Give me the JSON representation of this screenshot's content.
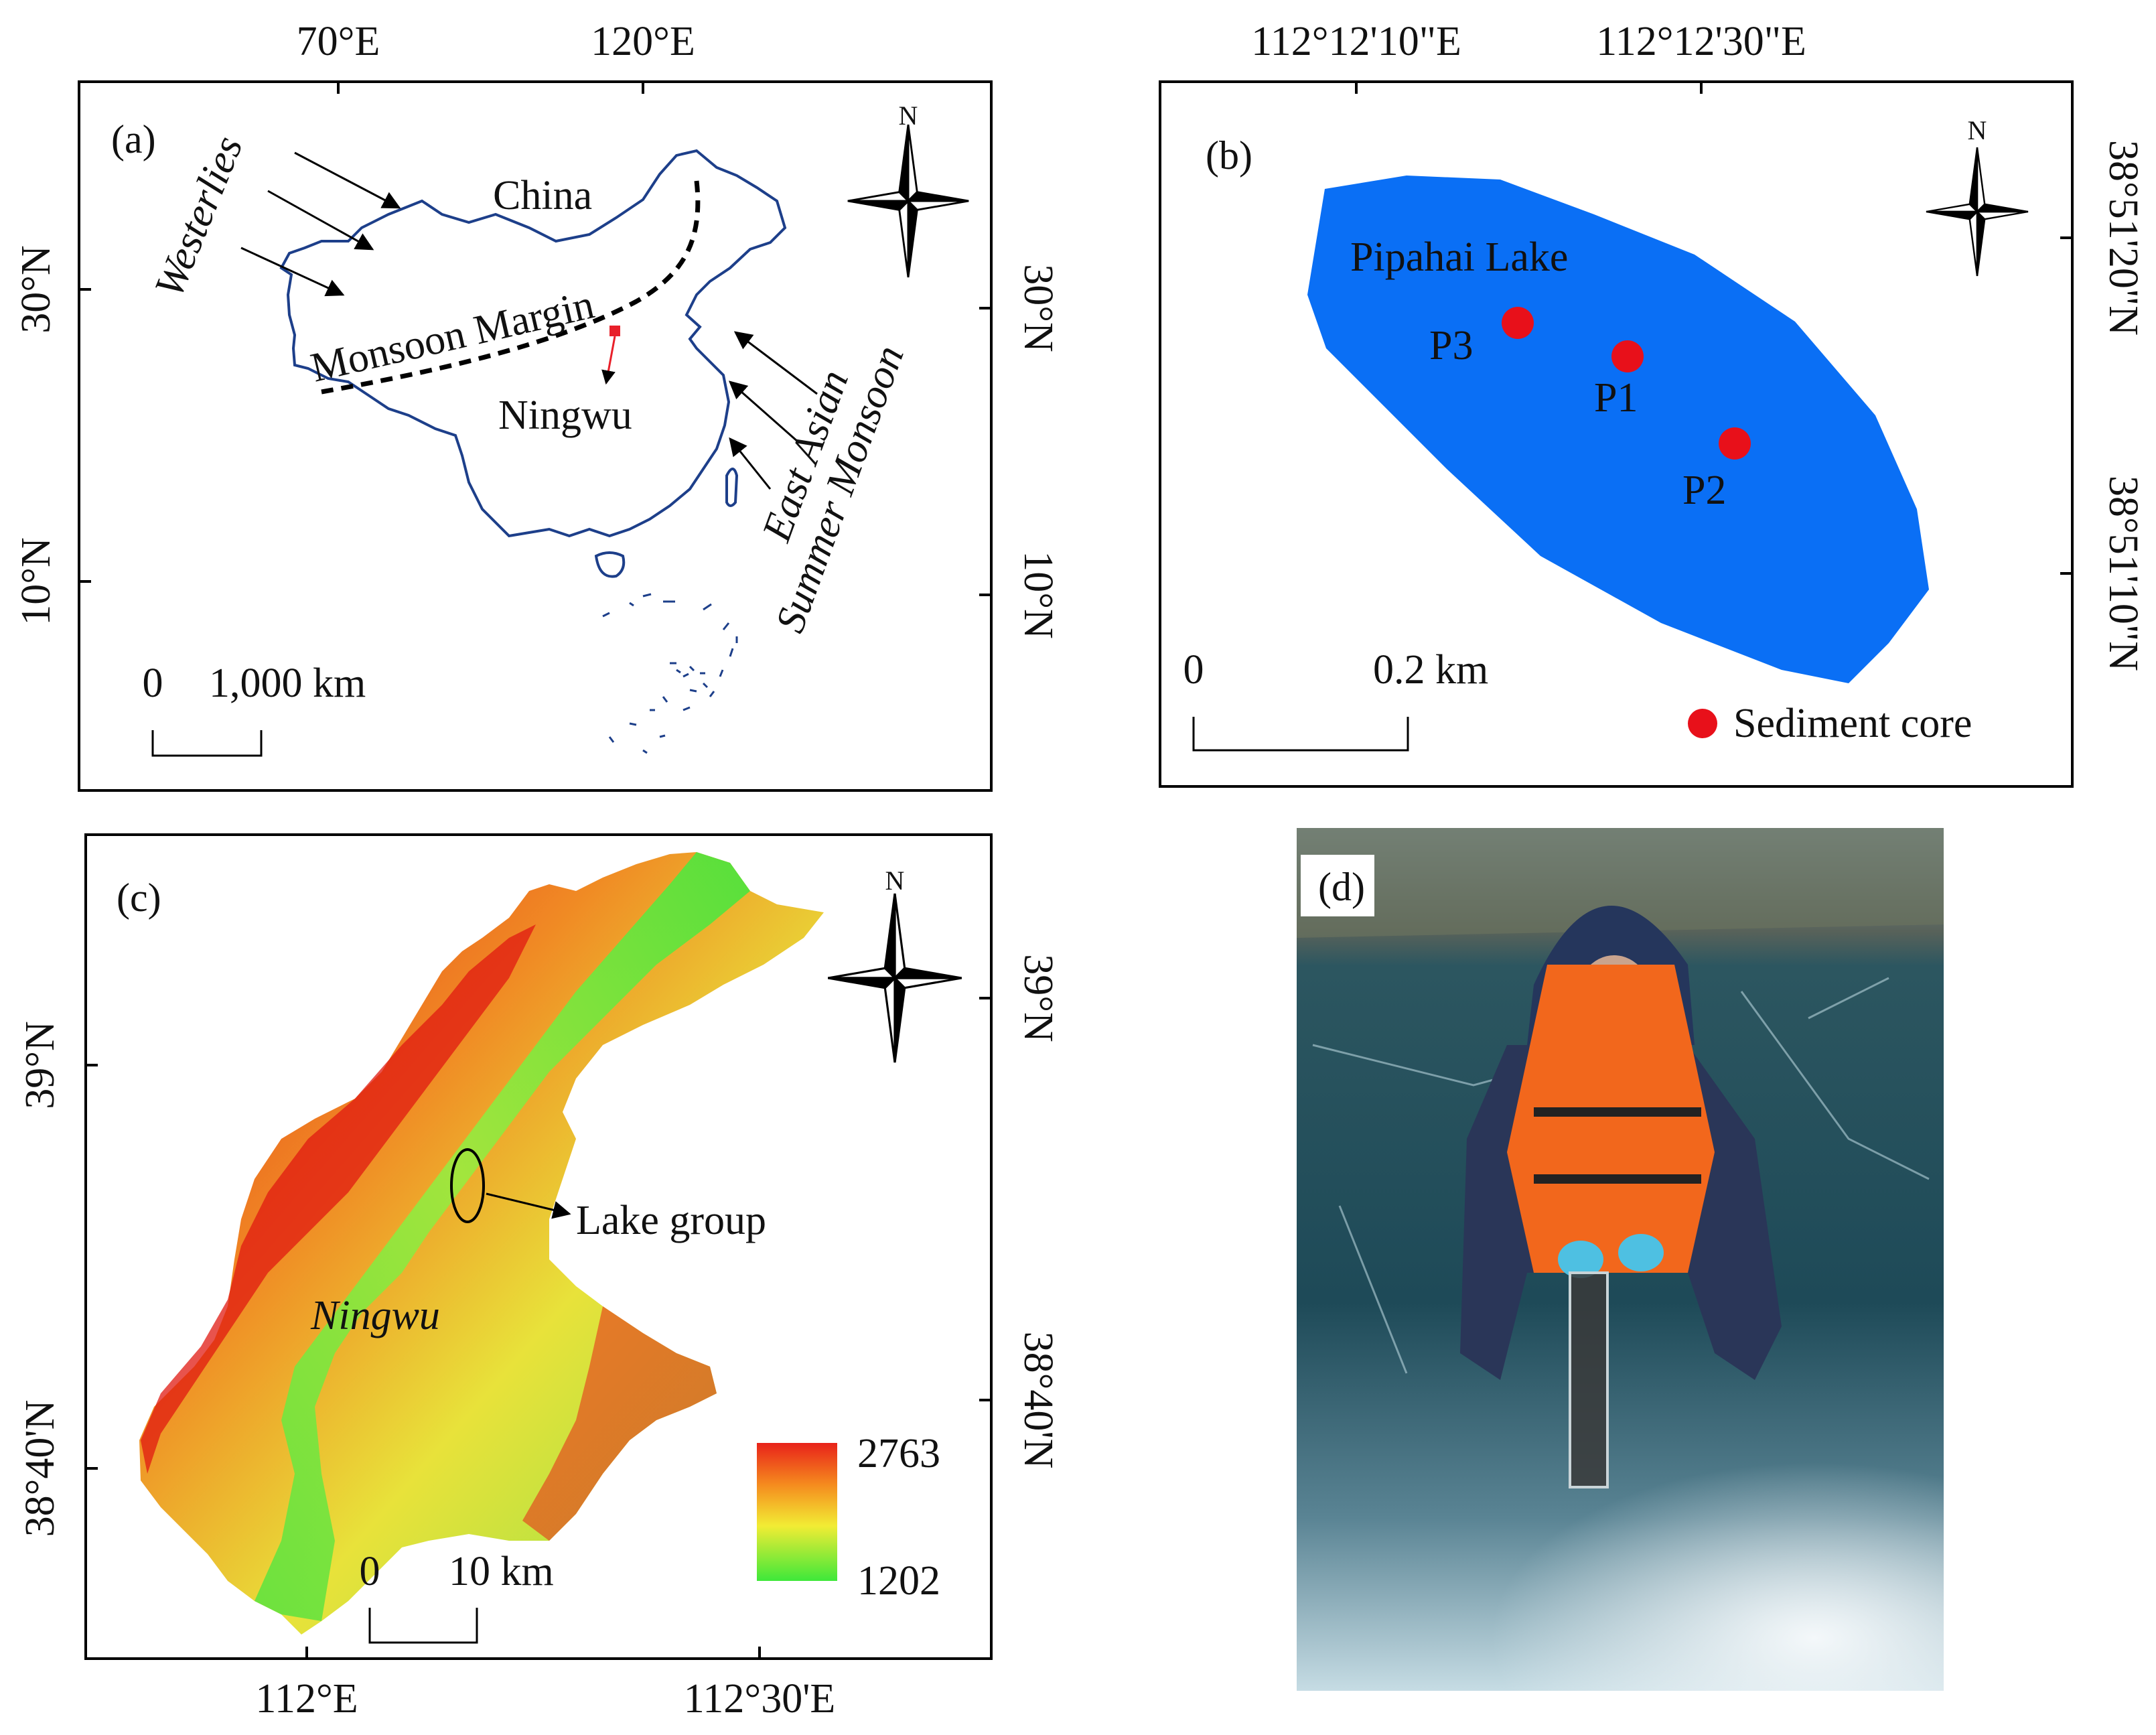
{
  "panel_a": {
    "letter": "(a)",
    "top_ticks": [
      "70°E",
      "120°E"
    ],
    "left_ticks": [
      "30°N",
      "10°N"
    ],
    "right_ticks": [
      "30°N",
      "10°N"
    ],
    "china_label": "China",
    "monsoon_margin_label": "Monsoon Margin",
    "ningwu_label": "Ningwu",
    "westerlies_label": "Westerlies",
    "east_asian_label": "East Asian",
    "summer_monsoon_label": "Summer Monsoon",
    "scale_zero": "0",
    "scale_text": "1,000 km",
    "north": "N",
    "colors": {
      "border": "#1d3f8a",
      "site": "#e8202a"
    }
  },
  "panel_b": {
    "letter": "(b)",
    "top_ticks": [
      "112°12'10\"E",
      "112°12'30\"E"
    ],
    "right_ticks": [
      "38°51'20\"N",
      "38°51'10\"N"
    ],
    "lake_label": "Pipahai Lake",
    "sites": [
      "P3",
      "P1",
      "P2"
    ],
    "scale_zero": "0",
    "scale_text": "0.2 km",
    "legend_label": "Sediment core",
    "north": "N",
    "colors": {
      "lake": "#0a6ff5",
      "core": "#e8101a"
    }
  },
  "panel_c": {
    "letter": "(c)",
    "bottom_ticks": [
      "112°E",
      "112°30'E"
    ],
    "left_ticks": [
      "39°N",
      "38°40'N"
    ],
    "right_ticks": [
      "39°N",
      "38°40'N"
    ],
    "lake_group_label": "Lake group",
    "ningwu_label": "Ningwu",
    "legend_max": "2763",
    "legend_min": "1202",
    "scale_zero": "0",
    "scale_text": "10 km",
    "north": "N",
    "colors": {
      "high": "#e81c12",
      "mid": "#f5e82a",
      "low": "#3ee03a"
    }
  },
  "panel_d": {
    "letter": "(d)"
  }
}
